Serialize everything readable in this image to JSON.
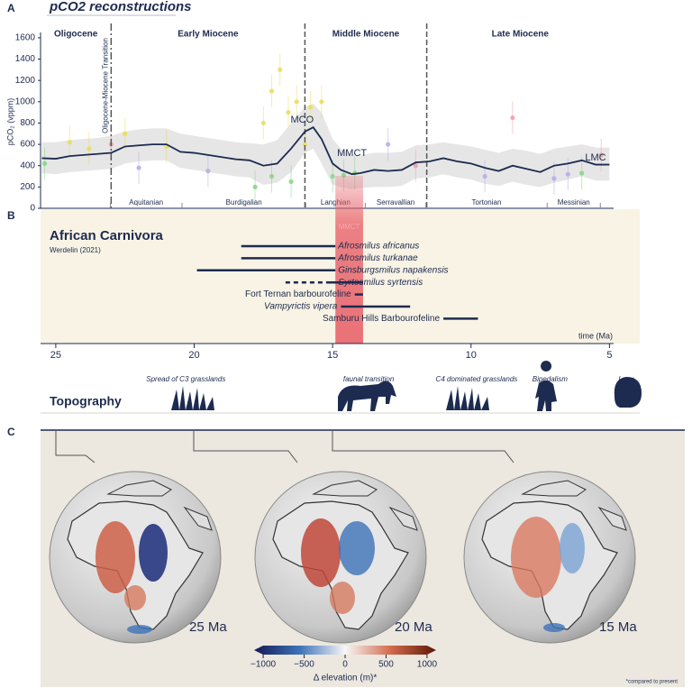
{
  "panels": [
    "A",
    "B",
    "C"
  ],
  "chart_data": [
    {
      "type": "line",
      "title": "pCO2 reconstructions",
      "y_label": "pCO₂ (vppm)",
      "xlim": [
        25.55,
        4.85
      ],
      "ylim": [
        0,
        1650
      ],
      "yticks": [
        0,
        200,
        400,
        600,
        800,
        1000,
        1200,
        1400,
        1600
      ],
      "color": "#1d2b50",
      "x": [
        25.5,
        25,
        24.5,
        24,
        23.5,
        23,
        22.5,
        22,
        21.5,
        21,
        20.5,
        20,
        19.5,
        19,
        18.5,
        18,
        17.5,
        17,
        16.5,
        16,
        15.7,
        15.4,
        15,
        14.7,
        14.3,
        14,
        13.5,
        13,
        12.5,
        12,
        11.5,
        11,
        10.5,
        10,
        9.5,
        9,
        8.5,
        8,
        7.5,
        7,
        6.5,
        6,
        5.5,
        5
      ],
      "values": [
        470,
        465,
        490,
        500,
        510,
        520,
        580,
        590,
        600,
        600,
        530,
        520,
        500,
        480,
        460,
        450,
        400,
        420,
        560,
        720,
        760,
        650,
        420,
        360,
        320,
        330,
        360,
        350,
        360,
        430,
        440,
        470,
        440,
        420,
        380,
        350,
        400,
        370,
        340,
        400,
        420,
        450,
        410,
        410
      ],
      "band": {
        "color": "#dcdcdc",
        "upper": [
          620,
          620,
          640,
          650,
          660,
          680,
          720,
          740,
          750,
          750,
          700,
          680,
          660,
          640,
          620,
          610,
          600,
          640,
          800,
          950,
          980,
          900,
          650,
          560,
          500,
          500,
          520,
          520,
          530,
          590,
          600,
          620,
          600,
          580,
          550,
          520,
          560,
          540,
          510,
          560,
          580,
          600,
          570,
          570
        ],
        "lower": [
          330,
          320,
          340,
          350,
          360,
          370,
          420,
          440,
          450,
          450,
          380,
          360,
          340,
          320,
          300,
          290,
          220,
          240,
          340,
          520,
          560,
          420,
          220,
          200,
          180,
          190,
          200,
          200,
          210,
          280,
          290,
          320,
          290,
          270,
          230,
          210,
          250,
          220,
          200,
          240,
          270,
          300,
          260,
          260
        ]
      },
      "points": {
        "x": [
          17.2,
          16.9,
          16.6,
          16.3,
          17.5,
          15.8,
          16.0,
          24.5,
          23.8,
          22.5,
          21,
          15.4,
          17.8,
          17.2,
          16.5,
          15.0,
          14.6,
          14.2,
          25.4,
          6.0,
          22.0,
          19.5,
          9.5,
          7.0,
          6.5,
          13.0,
          8.5,
          23.0,
          5.3,
          12.0
        ],
        "y": [
          1100,
          1300,
          900,
          1000,
          800,
          950,
          600,
          620,
          560,
          700,
          580,
          1000,
          200,
          300,
          250,
          300,
          310,
          330,
          420,
          330,
          380,
          350,
          300,
          280,
          320,
          600,
          850,
          600,
          500,
          400
        ],
        "colors": [
          "#e9dc5a",
          "#e9dc5a",
          "#e9dc5a",
          "#e9dc5a",
          "#e9dc5a",
          "#e9dc5a",
          "#e9dc5a",
          "#e9dc5a",
          "#e9dc5a",
          "#e9dc5a",
          "#e9dc5a",
          "#e9dc5a",
          "#86d486",
          "#86d486",
          "#86d486",
          "#86d486",
          "#86d486",
          "#86d486",
          "#86d486",
          "#86d486",
          "#b9a8e8",
          "#b9a8e8",
          "#b9a8e8",
          "#b9a8e8",
          "#b9a8e8",
          "#b9a8e8",
          "#ec9da3",
          "#ec9da3",
          "#ec9da3",
          "#ec9da3"
        ]
      },
      "epochs": {
        "names": [
          "Oligocene",
          "Early Miocene",
          "Middle Miocene",
          "Late Miocene"
        ],
        "boundaries": [
          23,
          16,
          11.6
        ],
        "transition_label": "Oligocene-Miocene Transition"
      },
      "stages": {
        "names": [
          "Aquitanian",
          "Burdigalian",
          "Langhian",
          "Serravallian",
          "Tortonian",
          "Messinian"
        ],
        "bounds": [
          23.03,
          20.44,
          15.97,
          13.82,
          11.63,
          7.25,
          5.33
        ]
      },
      "annotations": [
        {
          "text": "MCO",
          "x": 16.1,
          "y": 830
        },
        {
          "text": "MMCT",
          "x": 14.3,
          "y": 516
        },
        {
          "text": "LMC",
          "x": 5.5,
          "y": 474
        }
      ]
    },
    {
      "type": "timeline",
      "title": "African Carnivora",
      "subtitle": "Werdelin (2021)",
      "xlim": [
        25.55,
        4.85
      ],
      "xticks": [
        25,
        20,
        15,
        10,
        5
      ],
      "x_label": "time (Ma)",
      "color": "#1d2b50",
      "highlight": {
        "label": "MMCT",
        "range": [
          14.9,
          13.9
        ],
        "color": "#e8636b"
      },
      "taxa": [
        {
          "name": "Afrosmilus africanus",
          "start": 18.3,
          "end": 14.9,
          "italic": true
        },
        {
          "name": "Afrosmilus turkanae",
          "start": 18.3,
          "end": 14.9,
          "italic": true
        },
        {
          "name": "Ginsburgsmilus napakensis",
          "start": 19.9,
          "end": 14.9,
          "italic": true
        },
        {
          "name": "Syrtosmilus syrtensis",
          "start": 15.2,
          "end": 13.9,
          "uncertain_range": [
            16.7,
            15.2
          ],
          "italic": true
        },
        {
          "name": "Fort Ternan barbourofeline",
          "start": 14.2,
          "end": 13.9,
          "italic": false
        },
        {
          "name": "Vampyrictis  vipera",
          "start": 14.7,
          "end": 12.2,
          "italic": true
        },
        {
          "name": "Samburu Hills Barbourofeline",
          "start": 11.0,
          "end": 9.75,
          "italic": false
        }
      ]
    }
  ],
  "topography": {
    "title": "Topography",
    "events": [
      {
        "label": "Spread of C3 grasslands",
        "age": 20.3
      },
      {
        "label": "faunal transition",
        "age": 13.7
      },
      {
        "label": "C4 dominated grasslands",
        "age": 9.8
      },
      {
        "label": "Bipedalism",
        "age": 7.15
      },
      {
        "label": "Lucy",
        "age": 4.4
      }
    ]
  },
  "maps": {
    "labels": [
      "25 Ma",
      "20 Ma",
      "15 Ma"
    ],
    "colorbar": {
      "ticks": [
        {
          "value": -1000,
          "label": "−1000"
        },
        {
          "value": -500,
          "label": "−500"
        },
        0,
        500,
        1000
      ],
      "range": [
        -1100,
        1100
      ],
      "label": "Δ elevation (m)*",
      "note": "*compared to present"
    }
  }
}
